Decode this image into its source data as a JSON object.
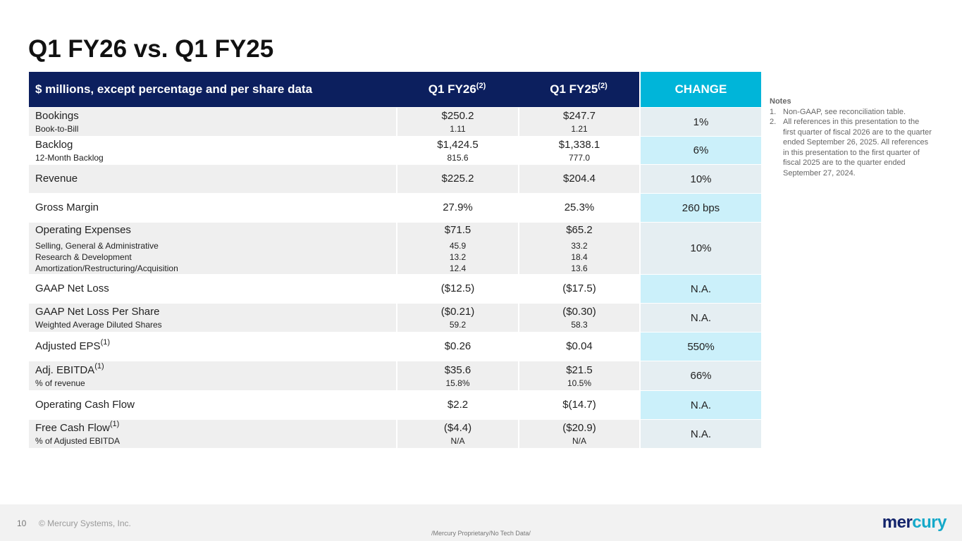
{
  "title": "Q1 FY26 vs. Q1 FY25",
  "table": {
    "headers": {
      "label": "$ millions, except percentage and per share data",
      "col1": "Q1 FY26",
      "col1_sup": "(2)",
      "col2": "Q1 FY25",
      "col2_sup": "(2)",
      "change": "CHANGE"
    },
    "rows": [
      {
        "label": "Bookings",
        "subs": [
          "Book-to-Bill"
        ],
        "q1fy26": "$250.2",
        "q1fy26_subs": [
          "1.11"
        ],
        "q1fy25": "$247.7",
        "q1fy25_subs": [
          "1.21"
        ],
        "change": "1%"
      },
      {
        "label": "Backlog",
        "subs": [
          "12-Month Backlog"
        ],
        "q1fy26": "$1,424.5",
        "q1fy26_subs": [
          "815.6"
        ],
        "q1fy25": "$1,338.1",
        "q1fy25_subs": [
          "777.0"
        ],
        "change": "6%"
      },
      {
        "label": "Revenue",
        "subs": [],
        "q1fy26": "$225.2",
        "q1fy26_subs": [],
        "q1fy25": "$204.4",
        "q1fy25_subs": [],
        "change": "10%"
      },
      {
        "label": "Gross Margin",
        "subs": [],
        "q1fy26": "27.9%",
        "q1fy26_subs": [],
        "q1fy25": "25.3%",
        "q1fy25_subs": [],
        "change": "260 bps"
      },
      {
        "label": "Operating Expenses",
        "subs": [
          "Selling, General & Administrative",
          "Research & Development",
          "Amortization/Restructuring/Acquisition"
        ],
        "q1fy26": "$71.5",
        "q1fy26_subs": [
          "45.9",
          "13.2",
          "12.4"
        ],
        "q1fy25": "$65.2",
        "q1fy25_subs": [
          "33.2",
          "18.4",
          "13.6"
        ],
        "change": "10%"
      },
      {
        "label": "GAAP Net Loss",
        "subs": [],
        "q1fy26": "($12.5)",
        "q1fy26_subs": [],
        "q1fy25": "($17.5)",
        "q1fy25_subs": [],
        "change": "N.A."
      },
      {
        "label": "GAAP Net Loss Per Share",
        "subs": [
          "Weighted Average Diluted Shares"
        ],
        "q1fy26": "($0.21)",
        "q1fy26_subs": [
          "59.2"
        ],
        "q1fy25": "($0.30)",
        "q1fy25_subs": [
          "58.3"
        ],
        "change": "N.A."
      },
      {
        "label": "Adjusted EPS",
        "sup": "(1)",
        "subs": [],
        "q1fy26": "$0.26",
        "q1fy26_subs": [],
        "q1fy25": "$0.04",
        "q1fy25_subs": [],
        "change": "550%"
      },
      {
        "label": "Adj. EBITDA",
        "sup": "(1)",
        "subs": [
          "% of revenue"
        ],
        "q1fy26": "$35.6",
        "q1fy26_subs": [
          "15.8%"
        ],
        "q1fy25": "$21.5",
        "q1fy25_subs": [
          "10.5%"
        ],
        "change": "66%"
      },
      {
        "label": "Operating Cash Flow",
        "subs": [],
        "q1fy26": "$2.2",
        "q1fy26_subs": [],
        "q1fy25": "$(14.7)",
        "q1fy25_subs": [],
        "change": "N.A."
      },
      {
        "label": "Free Cash Flow",
        "sup": "(1)",
        "subs": [
          "% of Adjusted EBITDA"
        ],
        "q1fy26": "($4.4)",
        "q1fy26_subs": [
          "N/A"
        ],
        "q1fy25": "($20.9)",
        "q1fy25_subs": [
          "N/A"
        ],
        "change": "N.A."
      }
    ]
  },
  "notes": {
    "heading": "Notes",
    "items": [
      {
        "num": "1.",
        "text": "Non-GAAP, see reconciliation table."
      },
      {
        "num": "2.",
        "text": "All references in this presentation to the first quarter of fiscal 2026 are to the quarter ended September 26, 2025. All references in this presentation to the first quarter of fiscal 2025 are to the quarter ended September 27, 2024."
      }
    ]
  },
  "footer": {
    "page": "10",
    "copyright": "© Mercury Systems, Inc.",
    "classification": "/Mercury Proprietary/No Tech Data/",
    "logo": "mercury"
  },
  "colors": {
    "header": "#0c1f5e",
    "change_header": "#00b5d9",
    "logo_dark": "#13246b",
    "logo_light": "#15a9c9"
  }
}
